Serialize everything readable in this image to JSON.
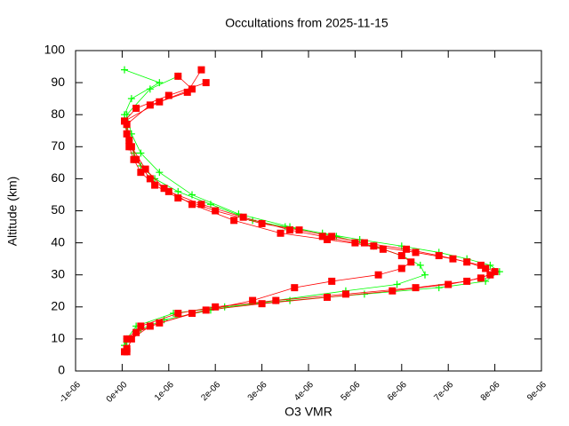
{
  "chart_data": {
    "type": "scatter",
    "title": "Occultations from 2025-11-15",
    "x_label": "O3 VMR",
    "y_label": "Altitude (km)",
    "xlim": [
      -1e-06,
      9e-06
    ],
    "xticks": [
      {
        "value": -1e-06,
        "label": "-1e-06"
      },
      {
        "value": 0,
        "label": "0e+00"
      },
      {
        "value": 1e-06,
        "label": "1e-06"
      },
      {
        "value": 2e-06,
        "label": "2e-06"
      },
      {
        "value": 3e-06,
        "label": "3e-06"
      },
      {
        "value": 4e-06,
        "label": "4e-06"
      },
      {
        "value": 5e-06,
        "label": "5e-06"
      },
      {
        "value": 6e-06,
        "label": "6e-06"
      },
      {
        "value": 7e-06,
        "label": "7e-06"
      },
      {
        "value": 8e-06,
        "label": "8e-06"
      },
      {
        "value": 9e-06,
        "label": "9e-06"
      }
    ],
    "ylim": [
      0,
      100
    ],
    "yticks": [
      0,
      10,
      20,
      30,
      40,
      50,
      60,
      70,
      80,
      90,
      100
    ],
    "series": [
      {
        "color": "#00ff00",
        "marker": "plus",
        "x": [
          5e-08,
          1e-07,
          3e-07,
          1.1e-06,
          2.2e-06,
          3.6e-06,
          5.2e-06,
          6.8e-06,
          7.8e-06,
          8.1e-06,
          7.9e-06,
          7.4e-06,
          6.8e-06,
          6e-06,
          5.1e-06,
          4.3e-06,
          3.5e-06,
          2.8e-06,
          1.9e-06,
          1.2e-06,
          7e-07,
          4e-07,
          2.5e-07,
          1.5e-07,
          1e-07,
          5e-08,
          2e-07,
          8e-07,
          5e-08
        ],
        "y": [
          8,
          10,
          14,
          18,
          20,
          22,
          24,
          26,
          28,
          31,
          33,
          35,
          37,
          39,
          41,
          43,
          45,
          47,
          52,
          56,
          60,
          64,
          68,
          72,
          76,
          80,
          85,
          90,
          94
        ]
      },
      {
        "color": "#00ff00",
        "marker": "plus",
        "x": [
          1e-07,
          4e-07,
          9e-07,
          1.9e-06,
          3.3e-06,
          4.8e-06,
          5.9e-06,
          6.5e-06,
          6.4e-06,
          6e-06,
          5.4e-06,
          4.6e-06,
          3.6e-06,
          2.5e-06,
          1.5e-06,
          8e-07,
          4e-07,
          2e-07,
          1e-07,
          6e-07,
          1.2e-06
        ],
        "y": [
          9,
          13,
          16,
          19,
          22,
          25,
          27,
          30,
          33,
          36,
          39,
          42,
          45,
          49,
          55,
          62,
          68,
          74,
          80,
          88,
          92
        ]
      },
      {
        "color": "#ff0000",
        "marker": "square",
        "x": [
          5e-08,
          1e-07,
          4e-07,
          1.2e-06,
          2e-06,
          3.3e-06,
          4.8e-06,
          6.3e-06,
          7.4e-06,
          7.9e-06,
          7.8e-06,
          7.4e-06,
          6.8e-06,
          6.1e-06,
          5.2e-06,
          4.5e-06,
          3.8e-06,
          3e-06,
          2e-06,
          1.2e-06,
          7e-07,
          4e-07,
          2.5e-07,
          1.5e-07,
          1e-07,
          5e-08,
          3e-07,
          1e-06,
          1.8e-06
        ],
        "y": [
          6,
          10,
          14,
          18,
          20,
          22,
          24,
          26,
          28,
          30,
          32,
          34,
          36,
          38,
          40,
          42,
          44,
          46,
          50,
          54,
          58,
          62,
          66,
          70,
          74,
          78,
          82,
          86,
          90
        ]
      },
      {
        "color": "#ff0000",
        "marker": "square",
        "x": [
          1e-07,
          2e-07,
          6e-07,
          1.5e-06,
          2.8e-06,
          3.7e-06,
          4.5e-06,
          5.5e-06,
          6e-06,
          6.2e-06,
          6e-06,
          5.6e-06,
          5e-06,
          4.3e-06,
          3.6e-06,
          2.6e-06,
          1.7e-06,
          1e-06,
          6e-07,
          3e-07,
          1.5e-07,
          5e-08,
          8e-07,
          1.5e-06,
          1.2e-06
        ],
        "y": [
          6,
          10,
          14,
          18,
          22,
          26,
          28,
          30,
          32,
          34,
          36,
          38,
          40,
          42,
          44,
          48,
          52,
          56,
          60,
          66,
          72,
          78,
          84,
          88,
          92
        ]
      },
      {
        "color": "#ff0000",
        "marker": "square",
        "x": [
          1e-07,
          3e-07,
          8e-07,
          1.8e-06,
          3e-06,
          4.4e-06,
          5.8e-06,
          7e-06,
          7.7e-06,
          8e-06,
          7.7e-06,
          7.1e-06,
          6.3e-06,
          5.4e-06,
          4.4e-06,
          3.4e-06,
          2.4e-06,
          1.5e-06,
          9e-07,
          5e-07,
          2e-07,
          1e-07,
          6e-07,
          1.4e-06,
          1.7e-06
        ],
        "y": [
          7,
          12,
          15,
          19,
          21,
          23,
          25,
          27,
          29,
          31,
          33,
          35,
          37,
          39,
          41,
          43,
          47,
          52,
          57,
          63,
          70,
          77,
          83,
          87,
          94
        ]
      }
    ]
  }
}
